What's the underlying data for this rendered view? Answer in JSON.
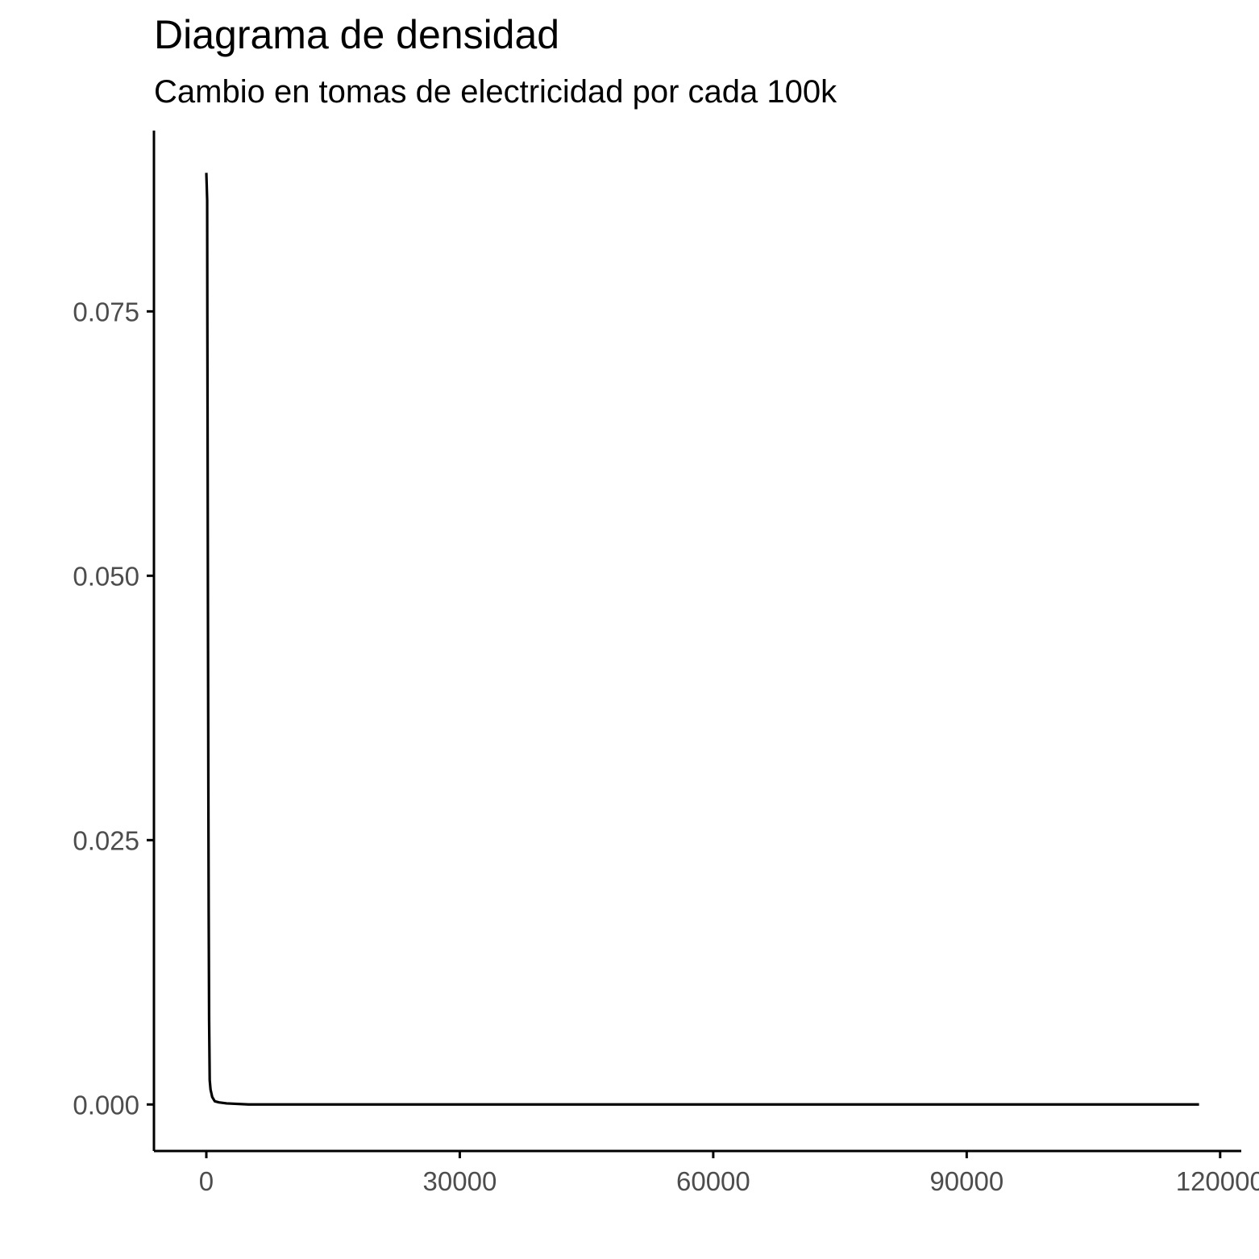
{
  "chart_data": {
    "type": "line",
    "title": "Diagrama de densidad",
    "subtitle": "Cambio en tomas de electricidad por cada 100k",
    "xlabel": "",
    "ylabel": "",
    "xlim": [
      -6200,
      122500
    ],
    "ylim": [
      -0.0044,
      0.0921
    ],
    "x_ticks": [
      0,
      30000,
      60000,
      90000,
      120000
    ],
    "x_tick_labels": [
      "0",
      "30000",
      "60000",
      "90000",
      "120000"
    ],
    "y_ticks": [
      0.0,
      0.025,
      0.05,
      0.075
    ],
    "y_tick_labels": [
      "0.000",
      "0.025",
      "0.050",
      "0.075"
    ],
    "grid": false,
    "legend": "none",
    "series": [
      {
        "color": "#000000",
        "x": [
          0,
          100,
          120,
          160,
          200,
          240,
          280,
          330,
          400,
          500,
          700,
          1000,
          1500,
          2400,
          5000,
          20000,
          60000,
          117500
        ],
        "y": [
          0.0881,
          0.0855,
          0.075,
          0.06,
          0.0435,
          0.03,
          0.018,
          0.008,
          0.0023,
          0.0014,
          0.0007,
          0.0003,
          0.0002,
          0.0001,
          0.0,
          0.0,
          0.0,
          0.0
        ]
      }
    ]
  }
}
